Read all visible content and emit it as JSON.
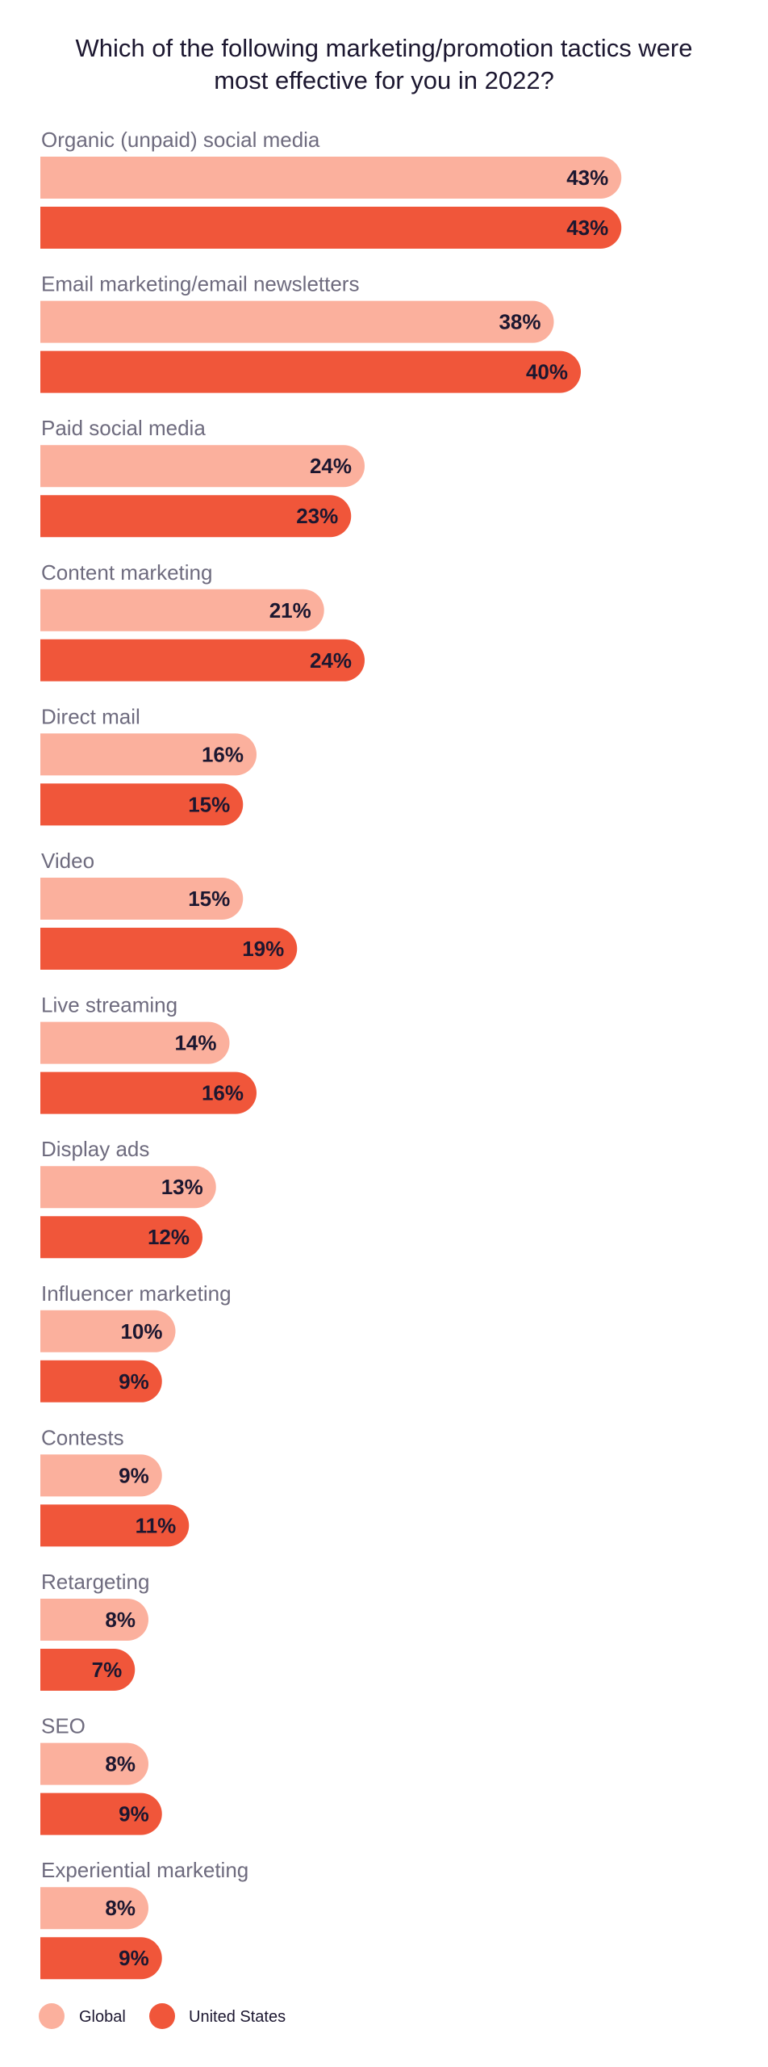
{
  "chart_data": {
    "type": "bar",
    "title": "Which of the following marketing/promotion tactics were most effective for you in 2022?",
    "orientation": "horizontal",
    "unit": "%",
    "categories": [
      "Organic (unpaid) social media",
      "Email marketing/email newsletters",
      "Paid social media",
      "Content marketing",
      "Direct mail",
      "Video",
      "Live streaming",
      "Display ads",
      "Influencer marketing",
      "Contests",
      "Retargeting",
      "SEO",
      "Experiential marketing"
    ],
    "series": [
      {
        "name": "Global",
        "color": "#fbb09d",
        "values": [
          43,
          38,
          24,
          21,
          16,
          15,
          14,
          13,
          10,
          9,
          8,
          8,
          8
        ]
      },
      {
        "name": "United States",
        "color": "#f0563a",
        "values": [
          43,
          40,
          23,
          24,
          15,
          19,
          16,
          12,
          9,
          11,
          7,
          9,
          9
        ]
      }
    ],
    "grid": false,
    "legend": "bottom-left"
  }
}
